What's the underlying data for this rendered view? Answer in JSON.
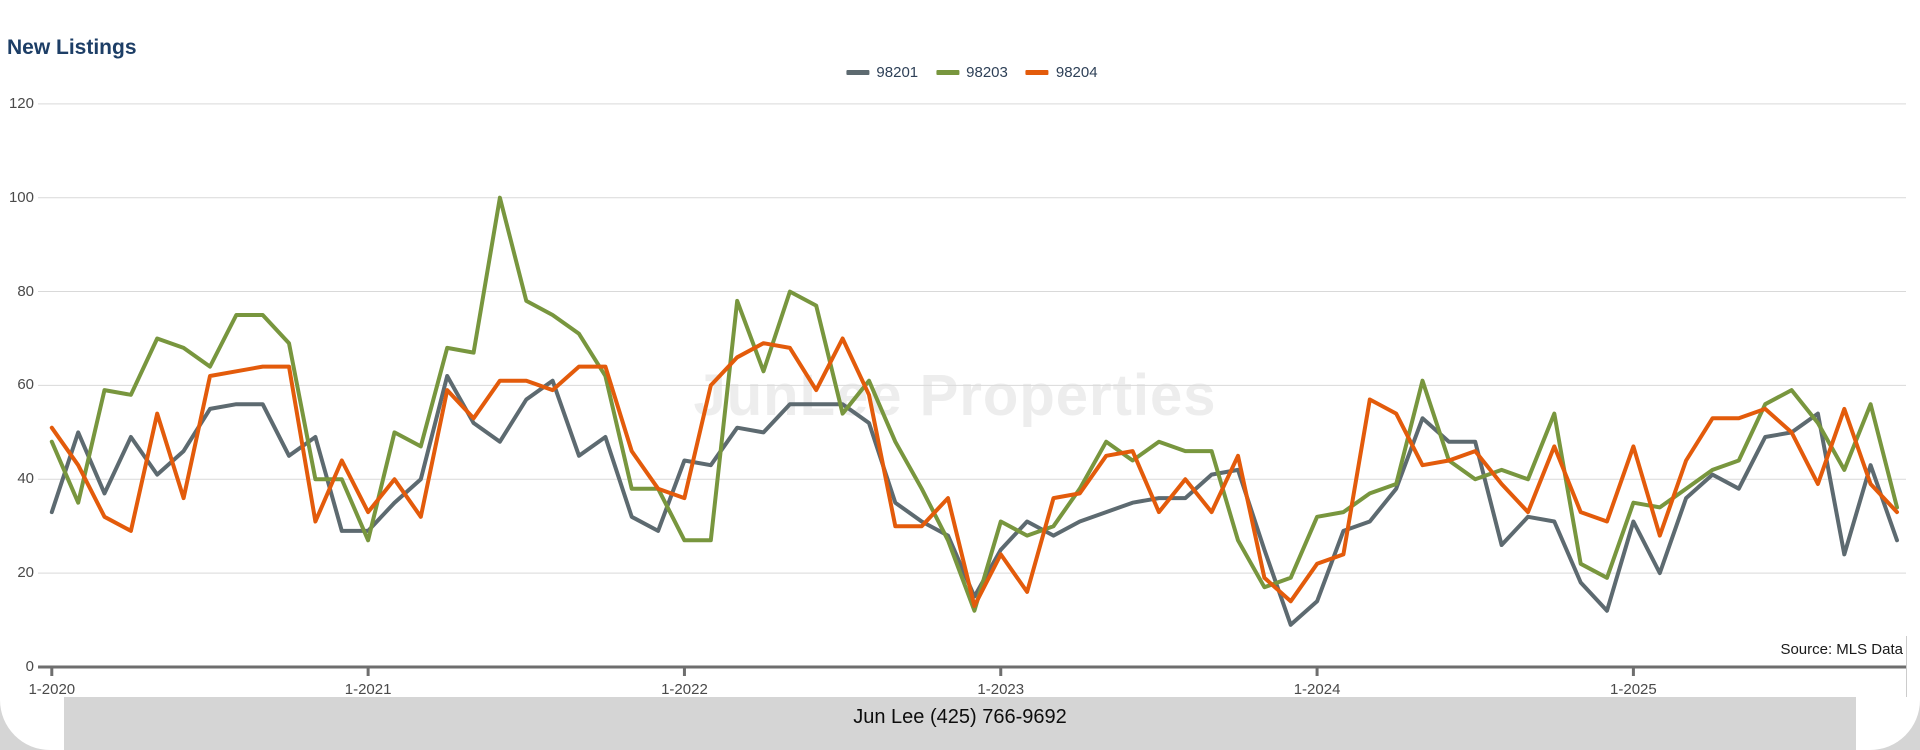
{
  "title": "New Listings",
  "watermark": "JunLee Properties",
  "source_note": "Source: MLS Data",
  "footer": {
    "text": "Jun Lee (425) 766-9692"
  },
  "colors": {
    "title": "#1d3e66",
    "grid": "#d9d9d9",
    "axis": "#6e6e6e",
    "tick_label": "#4a4a4a",
    "watermark": "#ededed",
    "footer_bg": "#d5d5d5"
  },
  "chart_data": {
    "type": "line",
    "title": "New Listings",
    "x_monthly_from": "1-2020",
    "x_monthly_to": "11-2025",
    "x_tick_labels": [
      "1-2020",
      "1-2021",
      "1-2022",
      "1-2023",
      "1-2024",
      "1-2025"
    ],
    "x_tick_indices": [
      0,
      12,
      24,
      36,
      48,
      60
    ],
    "y_ticks": [
      0,
      20,
      40,
      60,
      80,
      100,
      120
    ],
    "ylim": [
      0,
      120
    ],
    "legend_position": "top-center",
    "grid": "horizontal",
    "series": [
      {
        "name": "98201",
        "color": "#5d6a70",
        "values": [
          33,
          50,
          37,
          49,
          41,
          46,
          55,
          56,
          56,
          45,
          49,
          29,
          29,
          35,
          40,
          62,
          52,
          48,
          57,
          61,
          45,
          49,
          32,
          29,
          44,
          43,
          51,
          50,
          56,
          56,
          56,
          52,
          35,
          31,
          28,
          15,
          25,
          31,
          28,
          31,
          33,
          35,
          36,
          36,
          41,
          42,
          25,
          9,
          14,
          29,
          31,
          38,
          53,
          48,
          48,
          26,
          32,
          31,
          18,
          12,
          31,
          20,
          36,
          41,
          38,
          49,
          50,
          54,
          24,
          43,
          27
        ]
      },
      {
        "name": "98203",
        "color": "#78963e",
        "values": [
          48,
          35,
          59,
          58,
          70,
          68,
          64,
          75,
          75,
          69,
          40,
          40,
          27,
          50,
          47,
          68,
          67,
          100,
          78,
          75,
          71,
          62,
          38,
          38,
          27,
          27,
          78,
          63,
          80,
          77,
          54,
          61,
          48,
          38,
          27,
          12,
          31,
          28,
          30,
          38,
          48,
          44,
          48,
          46,
          46,
          27,
          17,
          19,
          32,
          33,
          37,
          39,
          61,
          44,
          40,
          42,
          40,
          54,
          22,
          19,
          35,
          34,
          38,
          42,
          44,
          56,
          59,
          52,
          42,
          56,
          34
        ]
      },
      {
        "name": "98204",
        "color": "#e35b0b",
        "values": [
          51,
          43,
          32,
          29,
          54,
          36,
          62,
          63,
          64,
          64,
          31,
          44,
          33,
          40,
          32,
          59,
          53,
          61,
          61,
          59,
          64,
          64,
          46,
          38,
          36,
          60,
          66,
          69,
          68,
          59,
          70,
          58,
          30,
          30,
          36,
          13,
          24,
          16,
          36,
          37,
          45,
          46,
          33,
          40,
          33,
          45,
          19,
          14,
          22,
          24,
          57,
          54,
          43,
          44,
          46,
          39,
          33,
          47,
          33,
          31,
          47,
          28,
          44,
          53,
          53,
          55,
          50,
          39,
          55,
          39,
          33
        ]
      }
    ]
  }
}
